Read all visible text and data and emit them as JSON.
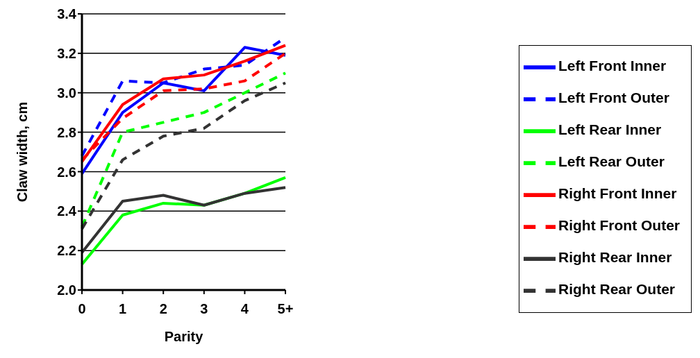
{
  "chart_data": {
    "type": "line",
    "xlabel": "Parity",
    "ylabel": "Claw width, cm",
    "categories": [
      "0",
      "1",
      "2",
      "3",
      "4",
      "5+"
    ],
    "ylim": [
      2.0,
      3.4
    ],
    "yticks": [
      {
        "value": 2.0,
        "label": "2.0"
      },
      {
        "value": 2.2,
        "label": "2.2"
      },
      {
        "value": 2.4,
        "label": "2.4"
      },
      {
        "value": 2.6,
        "label": "2.6"
      },
      {
        "value": 2.8,
        "label": "2.8"
      },
      {
        "value": 3.0,
        "label": "3.0"
      },
      {
        "value": 3.2,
        "label": "3.2"
      },
      {
        "value": 3.4,
        "label": "3.4"
      }
    ],
    "grid": "y",
    "legend": "right",
    "marker": "none",
    "series": [
      {
        "name": "Left Front Inner",
        "color": "#0000ff",
        "line_style": "solid",
        "values": [
          2.59,
          2.9,
          3.05,
          3.01,
          3.23,
          3.19
        ]
      },
      {
        "name": "Left Front Outer",
        "color": "#0000ff",
        "line_style": "dashed",
        "values": [
          2.68,
          3.06,
          3.05,
          3.12,
          3.14,
          3.28
        ]
      },
      {
        "name": "Left Rear Inner",
        "color": "#00ff00",
        "line_style": "solid",
        "values": [
          2.13,
          2.38,
          2.44,
          2.43,
          2.49,
          2.57
        ]
      },
      {
        "name": "Left Rear Outer",
        "color": "#00ff00",
        "line_style": "dashed",
        "values": [
          2.32,
          2.8,
          2.85,
          2.9,
          3.0,
          3.1
        ]
      },
      {
        "name": "Right Front Inner",
        "color": "#ff0000",
        "line_style": "solid",
        "values": [
          2.65,
          2.94,
          3.07,
          3.09,
          3.16,
          3.24
        ]
      },
      {
        "name": "Right Front Outer",
        "color": "#ff0000",
        "line_style": "dashed",
        "values": [
          2.66,
          2.87,
          3.01,
          3.02,
          3.06,
          3.2
        ]
      },
      {
        "name": "Right Rear Inner",
        "color": "#333333",
        "line_style": "solid",
        "values": [
          2.19,
          2.45,
          2.48,
          2.43,
          2.49,
          2.52
        ]
      },
      {
        "name": "Right Rear Outer",
        "color": "#333333",
        "line_style": "dashed",
        "values": [
          2.31,
          2.66,
          2.78,
          2.82,
          2.96,
          3.05
        ]
      }
    ]
  }
}
